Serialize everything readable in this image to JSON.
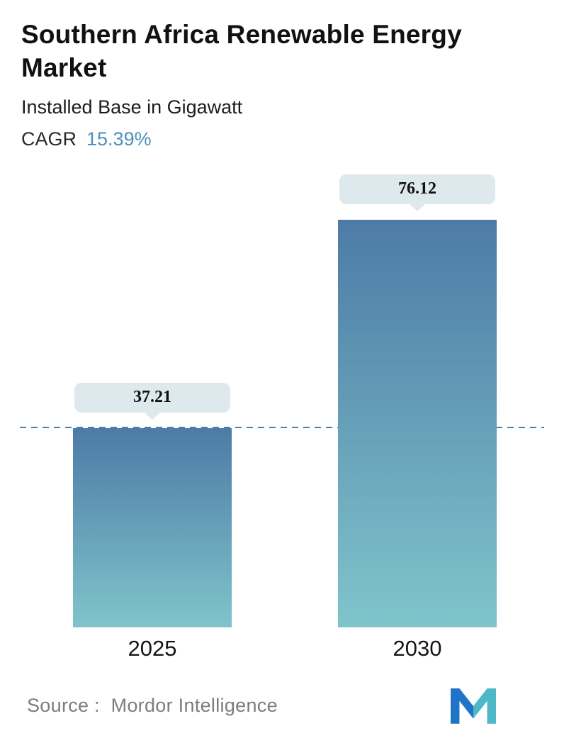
{
  "header": {
    "title": "Southern Africa Renewable Energy Market",
    "subtitle": "Installed Base in Gigawatt",
    "cagr_label": "CAGR",
    "cagr_value": "15.39%"
  },
  "chart_data": {
    "type": "bar",
    "title": "Southern Africa Renewable Energy Market",
    "subtitle": "Installed Base in Gigawatt",
    "unit": "Gigawatt",
    "cagr": "15.39%",
    "categories": [
      "2025",
      "2030"
    ],
    "values": [
      37.21,
      76.12
    ],
    "ylim": [
      0,
      76.12
    ],
    "grid": false,
    "legend": "none",
    "annotations": [
      "dashed horizontal reference line at 37.21 (2025 level) spanning chart width"
    ]
  },
  "footer": {
    "source_prefix": "Source :",
    "source_name": "Mordor Intelligence"
  },
  "theme": {
    "bar_gradient_top": "#4d7ba6",
    "bar_gradient_bottom": "#7fc4cb",
    "callout_bg": "#dde9ec",
    "dash_line_color": "#4a7fa8",
    "cagr_value_color": "#4a90ba",
    "source_text_color": "#7c7c7c",
    "logo_blue": "#1f74c8",
    "logo_teal": "#4db8c8"
  }
}
